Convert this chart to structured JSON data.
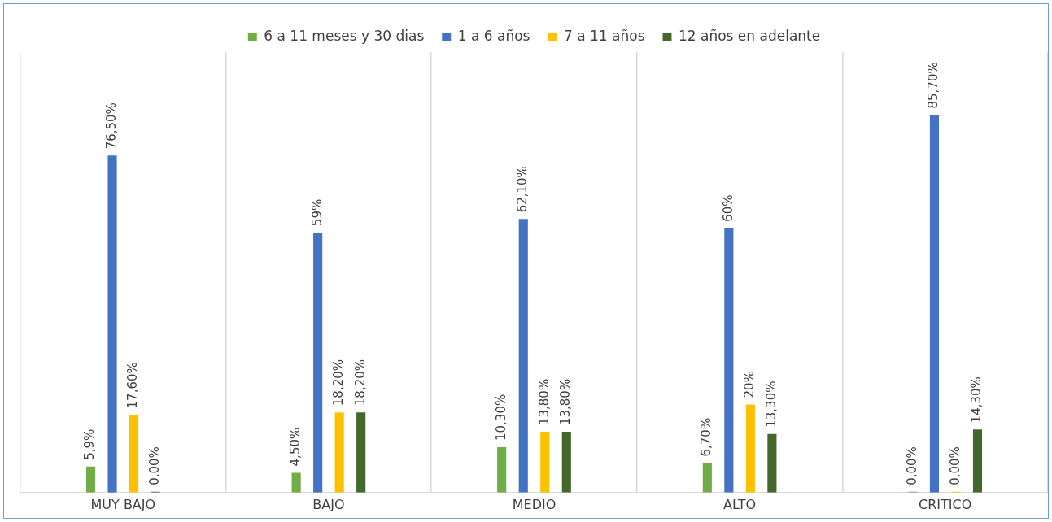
{
  "chart_data": {
    "type": "bar",
    "categories": [
      "MUY BAJO",
      "BAJO",
      "MEDIO",
      "ALTO",
      "CRITICO"
    ],
    "series": [
      {
        "name": "6 a 11 meses y 30 dias",
        "color": "#70ad47",
        "values": [
          5.9,
          4.5,
          10.3,
          6.7,
          0
        ],
        "value_labels": [
          "5,9%",
          "4,50%",
          "10,30%",
          "6,70%",
          "0,00%"
        ]
      },
      {
        "name": "1 a 6 años",
        "color": "#4472c4",
        "values": [
          76.5,
          59,
          62.1,
          60,
          85.7
        ],
        "value_labels": [
          "76,50%",
          "59%",
          "62,10%",
          "60%",
          "85,70%"
        ]
      },
      {
        "name": "7 a 11 años",
        "color": "#ffc000",
        "values": [
          17.6,
          18.2,
          13.8,
          20,
          0
        ],
        "value_labels": [
          "17,60%",
          "18,20%",
          "13,80%",
          "20%",
          "0,00%"
        ]
      },
      {
        "name": "12 años en adelante",
        "color": "#43682b",
        "values": [
          0,
          18.2,
          13.8,
          13.3,
          14.3
        ],
        "value_labels": [
          "0,00%",
          "18,20%",
          "13,80%",
          "13,30%",
          "14,30%"
        ]
      }
    ],
    "ylim": [
      0,
      100
    ],
    "grid": "x",
    "legend": "top",
    "tick_labels": "x"
  }
}
